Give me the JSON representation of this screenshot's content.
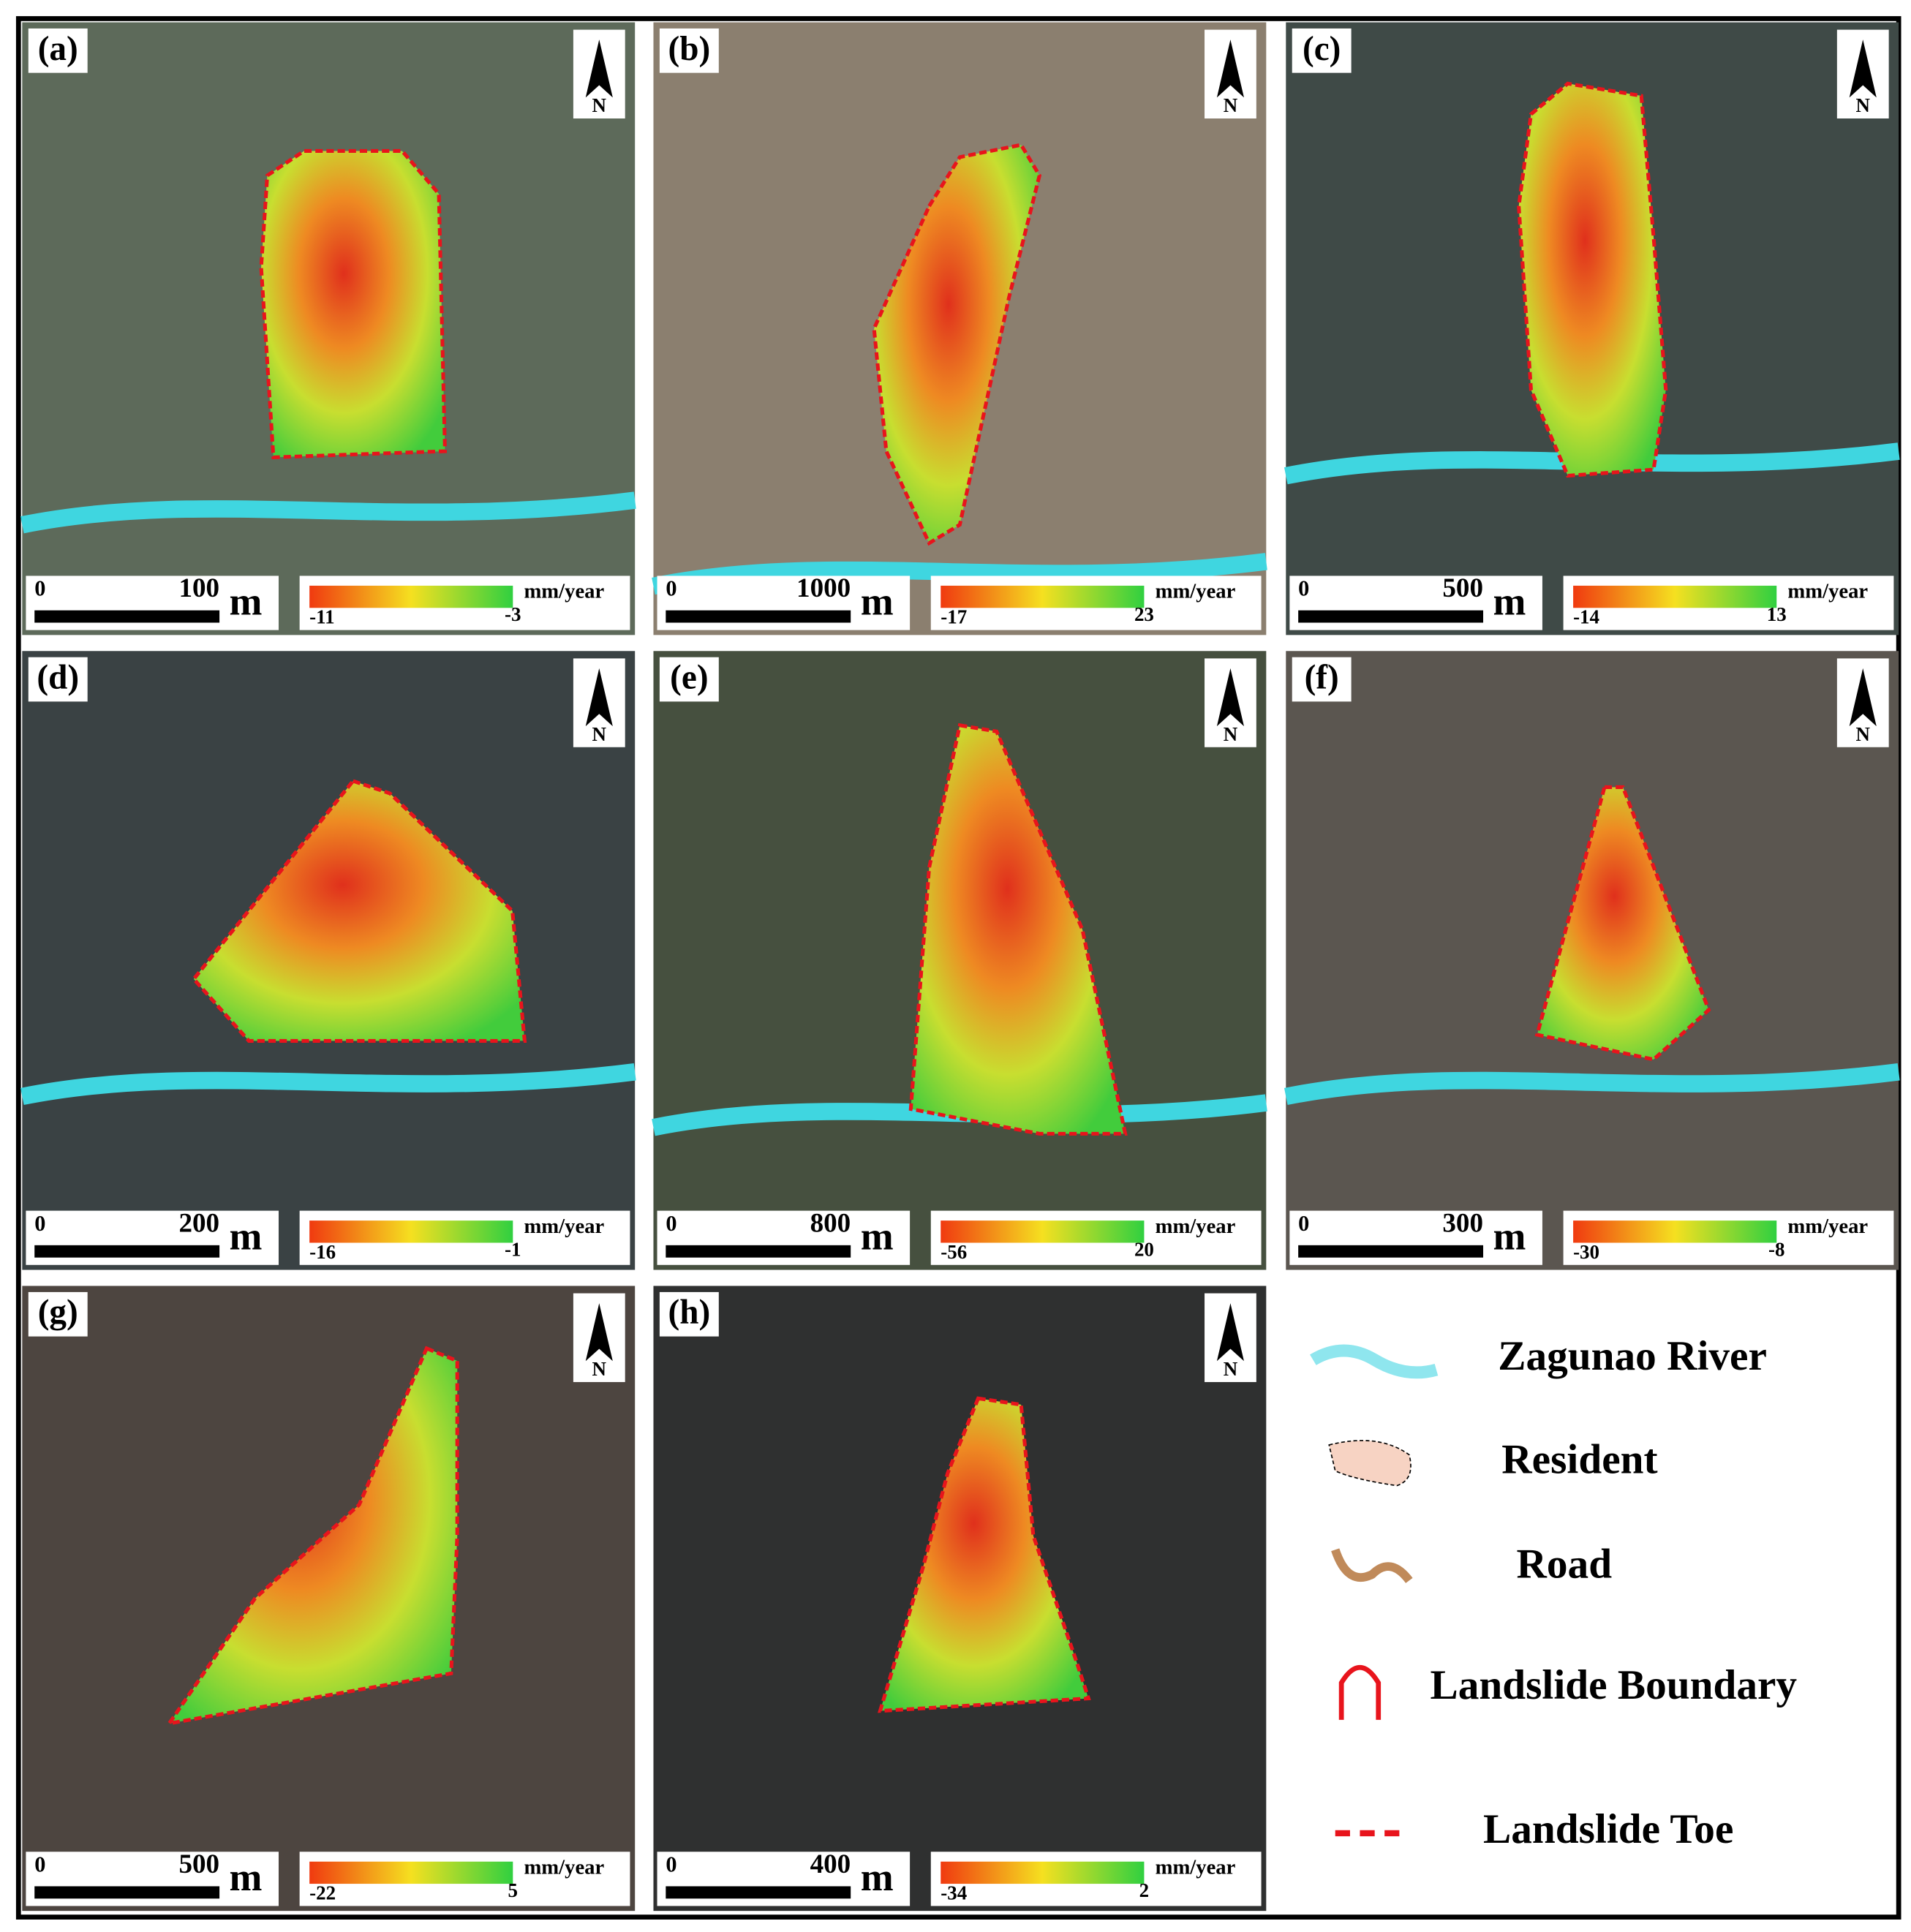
{
  "panels": [
    {
      "label": "(a)",
      "north": "N",
      "scale_bar": {
        "zero": 0,
        "distance": 100,
        "unit": "m"
      },
      "colorbar": {
        "unit": "mm/year",
        "min": -11,
        "max": -3
      }
    },
    {
      "label": "(b)",
      "north": "N",
      "scale_bar": {
        "zero": 0,
        "distance": 1000,
        "unit": "m"
      },
      "colorbar": {
        "unit": "mm/year",
        "min": -17,
        "max": 23
      }
    },
    {
      "label": "(c)",
      "north": "N",
      "scale_bar": {
        "zero": 0,
        "distance": 500,
        "unit": "m"
      },
      "colorbar": {
        "unit": "mm/year",
        "min": -14,
        "max": 13
      }
    },
    {
      "label": "(d)",
      "north": "N",
      "scale_bar": {
        "zero": 0,
        "distance": 200,
        "unit": "m"
      },
      "colorbar": {
        "unit": "mm/year",
        "min": -16,
        "max": -1
      }
    },
    {
      "label": "(e)",
      "north": "N",
      "scale_bar": {
        "zero": 0,
        "distance": 800,
        "unit": "m"
      },
      "colorbar": {
        "unit": "mm/year",
        "min": -56,
        "max": 20
      }
    },
    {
      "label": "(f)",
      "north": "N",
      "scale_bar": {
        "zero": 0,
        "distance": 300,
        "unit": "m"
      },
      "colorbar": {
        "unit": "mm/year",
        "min": -30,
        "max": -8
      }
    },
    {
      "label": "(g)",
      "north": "N",
      "scale_bar": {
        "zero": 0,
        "distance": 500,
        "unit": "m"
      },
      "colorbar": {
        "unit": "mm/year",
        "min": -22,
        "max": 5
      }
    },
    {
      "label": "(h)",
      "north": "N",
      "scale_bar": {
        "zero": 0,
        "distance": 400,
        "unit": "m"
      },
      "colorbar": {
        "unit": "mm/year",
        "min": -34,
        "max": 2
      }
    }
  ],
  "legend": [
    {
      "label": "Zagunao River"
    },
    {
      "label": "Resident"
    },
    {
      "label": "Road"
    },
    {
      "label": "Landslide Boundary"
    },
    {
      "label": "Landslide Toe"
    }
  ]
}
